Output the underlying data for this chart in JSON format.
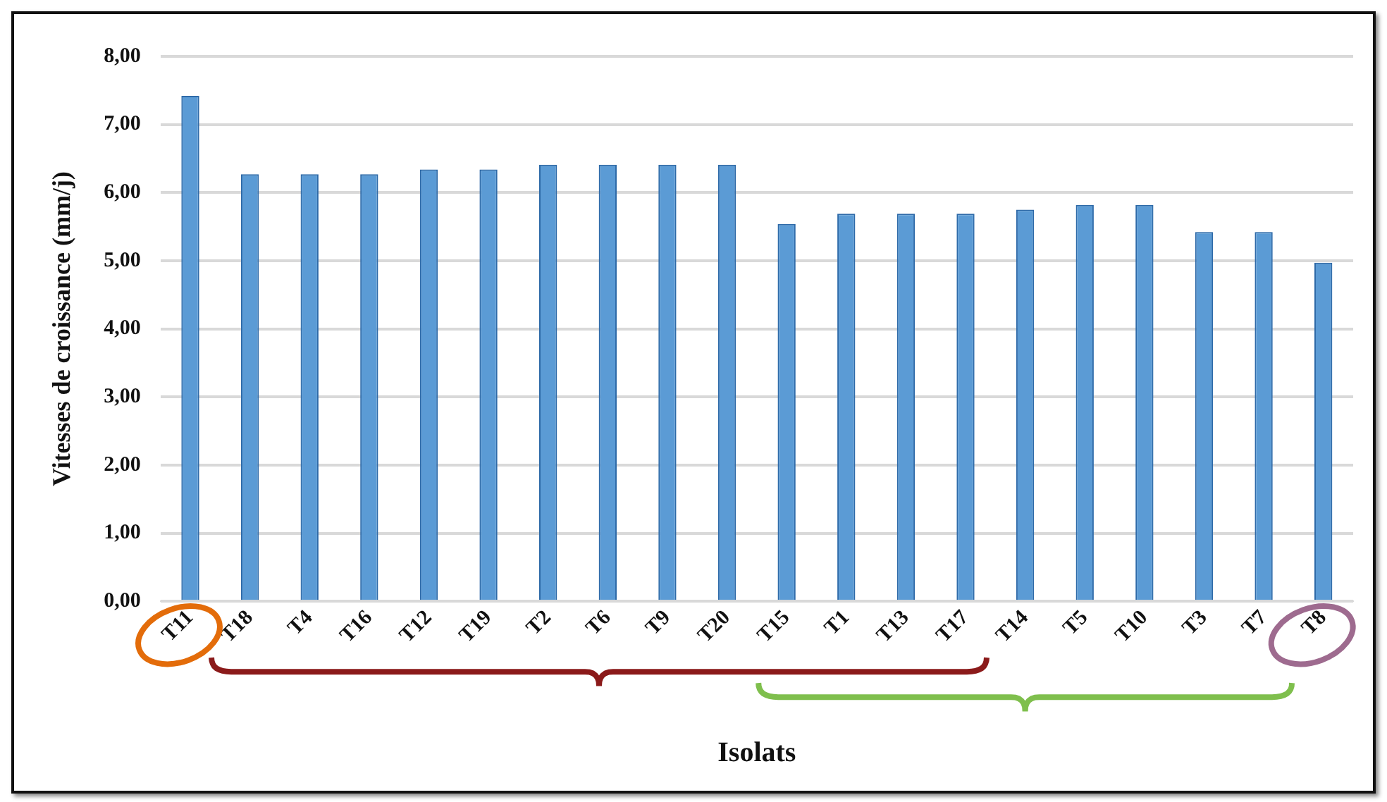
{
  "chart_data": {
    "type": "bar",
    "xlabel": "Isolats",
    "ylabel": "Vitesses de croissance (mm/j)",
    "categories": [
      "T11",
      "T18",
      "T4",
      "T16",
      "T12",
      "T19",
      "T2",
      "T6",
      "T9",
      "T20",
      "T15",
      "T1",
      "T13",
      "T17",
      "T14",
      "T5",
      "T10",
      "T3",
      "T7",
      "T8"
    ],
    "values": [
      7.42,
      6.27,
      6.27,
      6.27,
      6.34,
      6.34,
      6.41,
      6.41,
      6.41,
      6.41,
      5.54,
      5.69,
      5.69,
      5.69,
      5.75,
      5.82,
      5.82,
      5.42,
      5.42,
      4.97
    ],
    "color": "#5b9bd5",
    "ylim": [
      0,
      8
    ],
    "yticks": [
      {
        "value": 0,
        "label": "0,00"
      },
      {
        "value": 1,
        "label": "1,00"
      },
      {
        "value": 2,
        "label": "2,00"
      },
      {
        "value": 3,
        "label": "3,00"
      },
      {
        "value": 4,
        "label": "4,00"
      },
      {
        "value": 5,
        "label": "5,00"
      },
      {
        "value": 6,
        "label": "6,00"
      },
      {
        "value": 7,
        "label": "7,00"
      },
      {
        "value": 8,
        "label": "8,00"
      }
    ],
    "grid": "y"
  }
}
